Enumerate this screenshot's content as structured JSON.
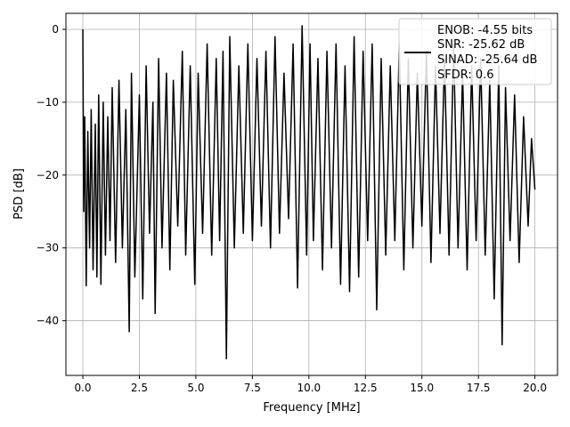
{
  "chart_data": {
    "type": "line",
    "xlabel": "Frequency [MHz]",
    "ylabel": "PSD [dB]",
    "xlim": [
      -0.75,
      21.0
    ],
    "ylim": [
      -47.5,
      2.2
    ],
    "xticks": [
      0.0,
      2.5,
      5.0,
      7.5,
      10.0,
      12.5,
      15.0,
      17.5,
      20.0
    ],
    "xtick_labels": [
      "0.0",
      "2.5",
      "5.0",
      "7.5",
      "10.0",
      "12.5",
      "15.0",
      "17.5",
      "20.0"
    ],
    "yticks": [
      0,
      -10,
      -20,
      -30,
      -40
    ],
    "ytick_labels": [
      "0",
      "−10",
      "−20",
      "−30",
      "−40"
    ],
    "grid": true,
    "legend_position": "top-right",
    "legend_lines": [
      "ENOB: -4.55 bits",
      "SNR: -25.62 dB",
      "SINAD: -25.64 dB",
      "SFDR: 0.6"
    ],
    "series": [
      {
        "color": "#000000",
        "x": [
          0.0,
          0.04,
          0.08,
          0.15,
          0.22,
          0.3,
          0.37,
          0.45,
          0.55,
          0.62,
          0.7,
          0.8,
          0.9,
          1.0,
          1.1,
          1.2,
          1.3,
          1.45,
          1.6,
          1.75,
          1.9,
          2.05,
          2.15,
          2.3,
          2.5,
          2.65,
          2.8,
          2.95,
          3.1,
          3.2,
          3.35,
          3.5,
          3.7,
          3.85,
          4.0,
          4.2,
          4.4,
          4.55,
          4.75,
          4.95,
          5.1,
          5.3,
          5.5,
          5.7,
          5.9,
          6.05,
          6.2,
          6.35,
          6.5,
          6.7,
          6.9,
          7.1,
          7.3,
          7.5,
          7.7,
          7.9,
          8.1,
          8.3,
          8.5,
          8.7,
          8.9,
          9.1,
          9.3,
          9.5,
          9.7,
          9.9,
          10.05,
          10.2,
          10.4,
          10.6,
          10.8,
          11.0,
          11.2,
          11.4,
          11.6,
          11.8,
          12.0,
          12.2,
          12.4,
          12.6,
          12.8,
          13.0,
          13.2,
          13.4,
          13.6,
          13.8,
          14.0,
          14.2,
          14.4,
          14.6,
          14.8,
          15.0,
          15.2,
          15.4,
          15.6,
          15.8,
          16.0,
          16.2,
          16.4,
          16.6,
          16.8,
          17.0,
          17.2,
          17.4,
          17.6,
          17.8,
          18.0,
          18.2,
          18.4,
          18.55,
          18.7,
          18.9,
          19.1,
          19.3,
          19.5,
          19.7,
          19.85,
          20.0
        ],
        "y": [
          0.0,
          -25,
          -12,
          -35.2,
          -14,
          -30,
          -11,
          -33,
          -13,
          -34,
          -9,
          -35,
          -10,
          -31,
          -12,
          -29,
          -8,
          -32,
          -7,
          -30,
          -11,
          -41.5,
          -6,
          -34,
          -9,
          -37,
          -5,
          -28,
          -10,
          -39,
          -4,
          -30,
          -6,
          -33,
          -7,
          -27,
          -3,
          -31,
          -5,
          -35,
          -6,
          -28,
          -2,
          -31,
          -4,
          -29,
          -3,
          -45.2,
          -1,
          -30,
          -5,
          -28,
          -2,
          -29,
          -4,
          -27,
          -3,
          -30,
          -1,
          -28,
          -6,
          -26,
          -2,
          -35.5,
          0.5,
          -31,
          -2,
          -29,
          -4,
          -33,
          -3,
          -30,
          -2,
          -35,
          -5,
          -36,
          -1,
          -34,
          -3,
          -29,
          -2,
          -38.5,
          -4,
          -31,
          -5,
          -29,
          -2,
          -33,
          -4,
          -30,
          -6,
          -27,
          -3,
          -32,
          -5,
          -28,
          -4,
          -31,
          -2,
          -30,
          -6,
          -33,
          -5,
          -29,
          -4,
          -31,
          -7,
          -37,
          -5,
          -43.3,
          -8,
          -29,
          -9,
          -32,
          -12,
          -27,
          -15,
          -22
        ]
      }
    ]
  }
}
